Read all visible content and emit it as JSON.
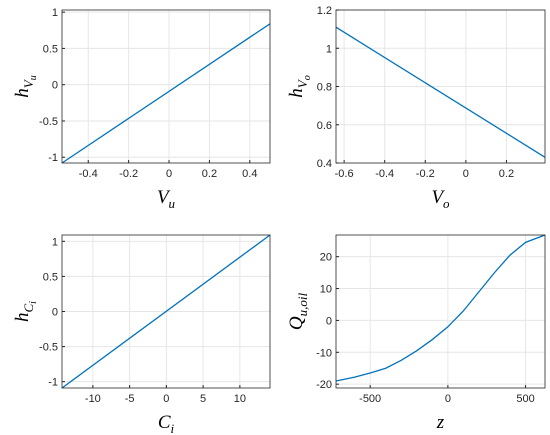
{
  "chart_data": [
    {
      "type": "line",
      "xlabel": {
        "base": "V",
        "sub": "u"
      },
      "ylabel": {
        "base": "h",
        "sub": "V",
        "subsub": "u"
      },
      "x": [
        -0.53,
        0.5
      ],
      "values": [
        -1.08,
        0.84
      ],
      "color": "#0072bd",
      "xlim": [
        -0.53,
        0.5
      ],
      "ylim": [
        -1.08,
        1.03
      ],
      "xticks": [
        -0.4,
        -0.2,
        0,
        0.2,
        0.4
      ],
      "yticks": [
        -1,
        -0.5,
        0,
        0.5,
        1
      ],
      "grid": true
    },
    {
      "type": "line",
      "xlabel": {
        "base": "V",
        "sub": "o"
      },
      "ylabel": {
        "base": "h",
        "sub": "V",
        "subsub": "o"
      },
      "x": [
        -0.64,
        0.39
      ],
      "values": [
        1.11,
        0.43
      ],
      "color": "#0072bd",
      "xlim": [
        -0.64,
        0.39
      ],
      "ylim": [
        0.4,
        1.2
      ],
      "xticks": [
        -0.6,
        -0.4,
        -0.2,
        0,
        0.2
      ],
      "yticks": [
        0.4,
        0.6,
        0.8,
        1,
        1.2
      ],
      "grid": true
    },
    {
      "type": "line",
      "xlabel": {
        "base": "C",
        "sub": "i"
      },
      "ylabel": {
        "base": "h",
        "sub": "C",
        "subsub": "i"
      },
      "x": [
        -14.2,
        14.1
      ],
      "values": [
        -1.09,
        1.09
      ],
      "color": "#0072bd",
      "xlim": [
        -14.2,
        14.1
      ],
      "ylim": [
        -1.09,
        1.09
      ],
      "xticks": [
        -10,
        -5,
        0,
        5,
        10
      ],
      "yticks": [
        -1,
        -0.5,
        0,
        0.5,
        1
      ],
      "grid": true
    },
    {
      "type": "line",
      "xlabel": {
        "base": "z"
      },
      "ylabel": {
        "base": "Q",
        "sub": "u,oil"
      },
      "x": [
        -720,
        -600,
        -500,
        -400,
        -300,
        -200,
        -100,
        0,
        100,
        200,
        300,
        400,
        500,
        625
      ],
      "values": [
        -19,
        -17.8,
        -16.5,
        -15,
        -12.5,
        -9.5,
        -6,
        -2,
        3,
        9,
        15,
        20.5,
        24.5,
        26.8
      ],
      "color": "#0072bd",
      "xlim": [
        -720,
        625
      ],
      "ylim": [
        -21.2,
        26.8
      ],
      "xticks": [
        -500,
        0,
        500
      ],
      "yticks": [
        -20,
        -10,
        0,
        10,
        20
      ],
      "grid": true
    }
  ]
}
